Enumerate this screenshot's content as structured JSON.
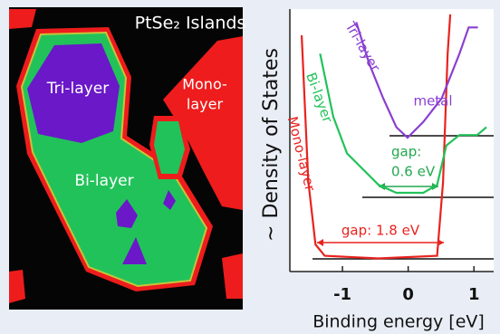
{
  "image_panel": {
    "title": "PtSe₂ Islands",
    "labels": {
      "tri": "Tri-layer",
      "mono": [
        "Mono-",
        "layer"
      ],
      "bi": "Bi-layer"
    }
  },
  "chart_data": {
    "type": "line",
    "ylabel": "~ Density of States",
    "xlabel": "Binding energy [eV]",
    "xlim": [
      -1.8,
      1.3
    ],
    "xticks": [
      -1,
      0,
      1
    ],
    "ylim": [
      0,
      10
    ],
    "series": [
      {
        "name": "Mono-layer",
        "color": "#e8231f",
        "x": [
          -1.62,
          -1.52,
          -1.41,
          -1.27,
          -0.45,
          0.44,
          0.53,
          0.6,
          0.64
        ],
        "values": [
          9.0,
          3.45,
          1.03,
          0.6,
          0.5,
          0.6,
          3.4,
          8.3,
          9.8
        ]
      },
      {
        "name": "Bi-layer",
        "color": "#22c25a",
        "x": [
          -1.34,
          -1.14,
          -0.93,
          -0.73,
          -0.45,
          -0.18,
          0.23,
          0.44,
          0.58,
          0.78,
          1.05,
          1.19
        ],
        "values": [
          8.3,
          5.9,
          4.5,
          4.0,
          3.3,
          3.0,
          3.0,
          3.3,
          4.8,
          5.2,
          5.2,
          5.5
        ]
      },
      {
        "name": "Tri-layer",
        "color": "#8a3fd0",
        "x": [
          -0.79,
          -0.59,
          -0.38,
          -0.18,
          -0.01,
          0.23,
          0.51,
          0.78,
          0.92,
          1.06
        ],
        "values": [
          9.5,
          7.9,
          6.6,
          5.5,
          5.1,
          5.7,
          6.6,
          8.3,
          9.3,
          9.3
        ]
      }
    ],
    "annotations": [
      {
        "text": "metal",
        "color": "#8a3fd0"
      },
      {
        "text": "gap:",
        "color": "#22a84e"
      },
      {
        "text": "0.6 eV",
        "color": "#22a84e"
      },
      {
        "text": "gap: 1.8 eV",
        "color": "#e8231f"
      }
    ]
  }
}
